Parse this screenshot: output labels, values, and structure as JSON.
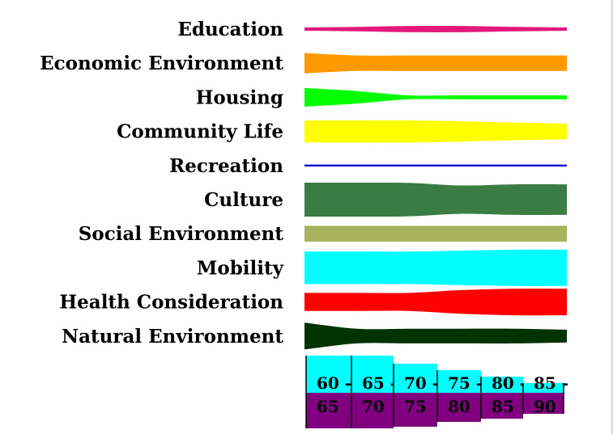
{
  "chart_data": {
    "type": "area",
    "title": "",
    "xlabel": "",
    "ylabel": "",
    "x_categories": [
      "60 - 65",
      "65 - 70",
      "70 - 75",
      "75 - 80",
      "80 - 85",
      "85 - 90"
    ],
    "legend": "none",
    "grid": false,
    "series": [
      {
        "name": "Education",
        "color": "#e2187a",
        "values": [
          0.12,
          0.16,
          0.22,
          0.22,
          0.16,
          0.12
        ]
      },
      {
        "name": "Economic Environment",
        "color": "#ff9900",
        "values": [
          0.72,
          0.55,
          0.55,
          0.55,
          0.55,
          0.55
        ]
      },
      {
        "name": "Housing",
        "color": "#00ff00",
        "values": [
          0.66,
          0.44,
          0.14,
          0.14,
          0.14,
          0.14
        ]
      },
      {
        "name": "Community Life",
        "color": "#ffff00",
        "values": [
          0.78,
          0.78,
          0.78,
          0.72,
          0.62,
          0.55
        ]
      },
      {
        "name": "Recreation",
        "color": "#0000cc",
        "values": [
          0.06,
          0.06,
          0.06,
          0.06,
          0.06,
          0.06
        ]
      },
      {
        "name": "Culture",
        "color": "#3a7d44",
        "values": [
          1.2,
          1.2,
          1.18,
          1.0,
          1.08,
          1.08
        ]
      },
      {
        "name": "Social Environment",
        "color": "#a6b35b",
        "values": [
          0.56,
          0.56,
          0.56,
          0.56,
          0.56,
          0.56
        ]
      },
      {
        "name": "Mobility",
        "color": "#00ffff",
        "values": [
          1.15,
          1.15,
          1.15,
          1.22,
          1.28,
          1.28
        ]
      },
      {
        "name": "Health Consideration",
        "color": "#ff0000",
        "values": [
          0.64,
          0.64,
          0.64,
          0.84,
          0.94,
          0.94
        ]
      },
      {
        "name": "Natural Environment",
        "color": "#003300",
        "values": [
          0.95,
          0.52,
          0.52,
          0.52,
          0.52,
          0.45
        ]
      }
    ],
    "age_blocks": {
      "top_color": "#00ffff",
      "bottom_color": "#800080",
      "bins": [
        {
          "top": "60 -",
          "bottom": "65"
        },
        {
          "top": "65 -",
          "bottom": "70"
        },
        {
          "top": "70 -",
          "bottom": "75"
        },
        {
          "top": "75 -",
          "bottom": "80"
        },
        {
          "top": "80 -",
          "bottom": "85"
        },
        {
          "top": "85 -",
          "bottom": "90"
        }
      ]
    }
  }
}
